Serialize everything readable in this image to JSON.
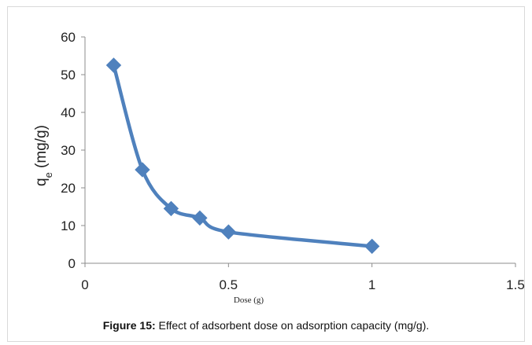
{
  "chart_data": {
    "type": "line",
    "x": [
      0.1,
      0.2,
      0.3,
      0.4,
      0.5,
      1.0
    ],
    "series": [
      {
        "values": [
          52.5,
          24.8,
          14.5,
          12.0,
          8.3,
          4.5
        ],
        "color": "#4f81bd",
        "marker": "diamond",
        "smooth": true
      }
    ],
    "xlabel": "Dose (g)",
    "ylabel_main": "q",
    "ylabel_sub": "e",
    "ylabel_unit": " (mg/g)",
    "xlim": [
      0,
      1.5
    ],
    "ylim": [
      0,
      60
    ],
    "x_ticks": [
      0,
      0.5,
      1,
      1.5
    ],
    "x_tick_labels": [
      "0",
      "0.5",
      "1",
      "1.5"
    ],
    "y_ticks": [
      0,
      10,
      20,
      30,
      40,
      50,
      60
    ],
    "y_tick_labels": [
      "0",
      "10",
      "20",
      "30",
      "40",
      "50",
      "60"
    ],
    "grid": false,
    "legend": "none"
  },
  "caption": {
    "label": "Figure 15:",
    "text": " Effect of adsorbent dose on adsorption capacity (mg/g)."
  },
  "colors": {
    "axis": "#8c8c8c",
    "series": "#4f81bd",
    "frame": "#d9d9d9"
  }
}
